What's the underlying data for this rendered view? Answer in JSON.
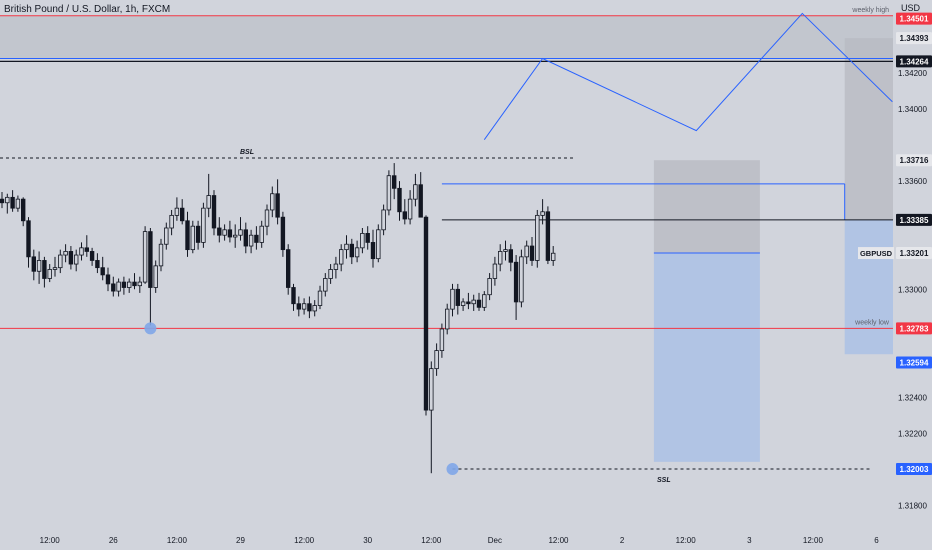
{
  "header": {
    "title": "British Pound / U.S. Dollar, 1h, FXCM",
    "currency": "USD"
  },
  "colors": {
    "background": "#d1d4dc",
    "candle": "#131722",
    "axis_text": "#131722",
    "red_line": "#f23645",
    "blue_line": "#2962ff",
    "zone_gray": "#b7bac2",
    "zone_blue": "#a9bfe6"
  },
  "chart_data": {
    "type": "candlestick",
    "symbol": "GBPUSD",
    "timeframe": "1h",
    "ylim": [
      1.317,
      1.3464
    ],
    "y_ticks": [
      1.342,
      1.34,
      1.336,
      1.33,
      1.324,
      1.322,
      1.318
    ],
    "y_tick_labels": [
      "1.34200",
      "1.34000",
      "1.33600",
      "1.33000",
      "1.32400",
      "1.32200",
      "1.31800"
    ],
    "x_ticks": [
      {
        "label": "12:00",
        "i": 9
      },
      {
        "label": "26",
        "i": 21
      },
      {
        "label": "12:00",
        "i": 33
      },
      {
        "label": "29",
        "i": 45
      },
      {
        "label": "12:00",
        "i": 57
      },
      {
        "label": "30",
        "i": 69
      },
      {
        "label": "12:00",
        "i": 81
      },
      {
        "label": "Dec",
        "i": 93
      },
      {
        "label": "12:00",
        "i": 105
      },
      {
        "label": "2",
        "i": 117
      },
      {
        "label": "12:00",
        "i": 129
      },
      {
        "label": "3",
        "i": 141
      },
      {
        "label": "12:00",
        "i": 153
      },
      {
        "label": "6",
        "i": 165
      }
    ],
    "x_axis": {
      "i0": 0,
      "px0": 2.0,
      "step": 5.3
    },
    "candles": [
      [
        1.335,
        1.3354,
        1.3345,
        1.3348
      ],
      [
        1.3348,
        1.3353,
        1.3342,
        1.3351
      ],
      [
        1.3351,
        1.3355,
        1.3343,
        1.3345
      ],
      [
        1.3345,
        1.3352,
        1.3343,
        1.335
      ],
      [
        1.335,
        1.3351,
        1.3335,
        1.3338
      ],
      [
        1.3338,
        1.334,
        1.3312,
        1.3318
      ],
      [
        1.3318,
        1.3322,
        1.3305,
        1.331
      ],
      [
        1.331,
        1.3321,
        1.3303,
        1.3316
      ],
      [
        1.3316,
        1.3318,
        1.3301,
        1.3306
      ],
      [
        1.3306,
        1.3314,
        1.3304,
        1.3311
      ],
      [
        1.3311,
        1.3318,
        1.3307,
        1.3312
      ],
      [
        1.3312,
        1.3322,
        1.3309,
        1.3319
      ],
      [
        1.3319,
        1.3325,
        1.3315,
        1.3321
      ],
      [
        1.3321,
        1.3324,
        1.3311,
        1.3314
      ],
      [
        1.3314,
        1.3322,
        1.331,
        1.3319
      ],
      [
        1.3319,
        1.3326,
        1.3316,
        1.3323
      ],
      [
        1.3323,
        1.333,
        1.3318,
        1.3321
      ],
      [
        1.3321,
        1.3323,
        1.3313,
        1.3316
      ],
      [
        1.3316,
        1.332,
        1.3309,
        1.3312
      ],
      [
        1.3312,
        1.3318,
        1.3305,
        1.3308
      ],
      [
        1.3308,
        1.3312,
        1.3299,
        1.3303
      ],
      [
        1.3303,
        1.3307,
        1.3296,
        1.3299
      ],
      [
        1.3299,
        1.3306,
        1.3296,
        1.3304
      ],
      [
        1.3304,
        1.3307,
        1.3297,
        1.3301
      ],
      [
        1.3301,
        1.3306,
        1.3298,
        1.3304
      ],
      [
        1.3304,
        1.3309,
        1.33,
        1.3302
      ],
      [
        1.3302,
        1.3307,
        1.3298,
        1.3304
      ],
      [
        1.3304,
        1.3335,
        1.3303,
        1.3332
      ],
      [
        1.3332,
        1.3334,
        1.328,
        1.3301
      ],
      [
        1.3301,
        1.3316,
        1.3298,
        1.3313
      ],
      [
        1.3313,
        1.3328,
        1.331,
        1.3325
      ],
      [
        1.3325,
        1.3337,
        1.3322,
        1.3334
      ],
      [
        1.3334,
        1.3344,
        1.333,
        1.3341
      ],
      [
        1.3341,
        1.3351,
        1.3338,
        1.3345
      ],
      [
        1.3345,
        1.335,
        1.3336,
        1.3338
      ],
      [
        1.3338,
        1.3343,
        1.3318,
        1.3322
      ],
      [
        1.3322,
        1.3338,
        1.332,
        1.3335
      ],
      [
        1.3335,
        1.3338,
        1.3322,
        1.3326
      ],
      [
        1.3326,
        1.3348,
        1.3323,
        1.3345
      ],
      [
        1.3345,
        1.3364,
        1.334,
        1.3352
      ],
      [
        1.3352,
        1.3355,
        1.333,
        1.3334
      ],
      [
        1.3334,
        1.334,
        1.3326,
        1.333
      ],
      [
        1.333,
        1.3336,
        1.3327,
        1.3333
      ],
      [
        1.3333,
        1.3338,
        1.3326,
        1.3329
      ],
      [
        1.3329,
        1.3336,
        1.3323,
        1.333
      ],
      [
        1.333,
        1.334,
        1.3327,
        1.3333
      ],
      [
        1.3333,
        1.3337,
        1.332,
        1.3324
      ],
      [
        1.3324,
        1.3333,
        1.332,
        1.333
      ],
      [
        1.333,
        1.3335,
        1.3322,
        1.3326
      ],
      [
        1.3326,
        1.3338,
        1.3323,
        1.3335
      ],
      [
        1.3335,
        1.3347,
        1.333,
        1.3344
      ],
      [
        1.3344,
        1.3357,
        1.334,
        1.3353
      ],
      [
        1.3353,
        1.3361,
        1.3336,
        1.334
      ],
      [
        1.334,
        1.3343,
        1.3318,
        1.3322
      ],
      [
        1.3322,
        1.3325,
        1.3297,
        1.3301
      ],
      [
        1.3301,
        1.3303,
        1.3288,
        1.3292
      ],
      [
        1.3292,
        1.3296,
        1.3285,
        1.3289
      ],
      [
        1.3289,
        1.3295,
        1.3286,
        1.3292
      ],
      [
        1.3292,
        1.3296,
        1.3284,
        1.3288
      ],
      [
        1.3288,
        1.3294,
        1.3285,
        1.3291
      ],
      [
        1.3291,
        1.3302,
        1.3289,
        1.3299
      ],
      [
        1.3299,
        1.3309,
        1.3296,
        1.3306
      ],
      [
        1.3306,
        1.3314,
        1.3303,
        1.3311
      ],
      [
        1.3311,
        1.3318,
        1.3306,
        1.3314
      ],
      [
        1.3314,
        1.3325,
        1.331,
        1.3322
      ],
      [
        1.3322,
        1.333,
        1.3317,
        1.3325
      ],
      [
        1.3325,
        1.3328,
        1.3314,
        1.3318
      ],
      [
        1.3318,
        1.3327,
        1.3315,
        1.3323
      ],
      [
        1.3323,
        1.3334,
        1.332,
        1.3331
      ],
      [
        1.3331,
        1.3335,
        1.3322,
        1.3326
      ],
      [
        1.3326,
        1.3333,
        1.3312,
        1.3317
      ],
      [
        1.3317,
        1.3336,
        1.3315,
        1.3333
      ],
      [
        1.3333,
        1.3347,
        1.333,
        1.3344
      ],
      [
        1.3344,
        1.3366,
        1.3341,
        1.3363
      ],
      [
        1.3363,
        1.337,
        1.335,
        1.3356
      ],
      [
        1.3356,
        1.336,
        1.3338,
        1.3343
      ],
      [
        1.3343,
        1.335,
        1.3336,
        1.3339
      ],
      [
        1.3339,
        1.3355,
        1.3336,
        1.335
      ],
      [
        1.335,
        1.3364,
        1.3346,
        1.3358
      ],
      [
        1.3358,
        1.3365,
        1.334,
        1.334
      ],
      [
        1.334,
        1.3341,
        1.323,
        1.3233
      ],
      [
        1.3233,
        1.326,
        1.3198,
        1.3256
      ],
      [
        1.3256,
        1.327,
        1.3252,
        1.3266
      ],
      [
        1.3266,
        1.3281,
        1.3262,
        1.3278
      ],
      [
        1.3278,
        1.3292,
        1.3275,
        1.3289
      ],
      [
        1.3289,
        1.3303,
        1.3285,
        1.33
      ],
      [
        1.33,
        1.3303,
        1.3286,
        1.3291
      ],
      [
        1.3291,
        1.3295,
        1.3288,
        1.3293
      ],
      [
        1.3293,
        1.3298,
        1.3289,
        1.3292
      ],
      [
        1.3292,
        1.3297,
        1.3288,
        1.3294
      ],
      [
        1.3294,
        1.3298,
        1.3288,
        1.329
      ],
      [
        1.329,
        1.3299,
        1.3288,
        1.3297
      ],
      [
        1.3297,
        1.3309,
        1.3294,
        1.3306
      ],
      [
        1.3306,
        1.3318,
        1.3302,
        1.3314
      ],
      [
        1.3314,
        1.3325,
        1.331,
        1.3321
      ],
      [
        1.3321,
        1.3327,
        1.3316,
        1.3322
      ],
      [
        1.3322,
        1.3325,
        1.331,
        1.3315
      ],
      [
        1.3315,
        1.3319,
        1.3283,
        1.3293
      ],
      [
        1.3293,
        1.3322,
        1.329,
        1.3318
      ],
      [
        1.3318,
        1.3327,
        1.3314,
        1.3324
      ],
      [
        1.3324,
        1.3329,
        1.3313,
        1.3316
      ],
      [
        1.3316,
        1.3344,
        1.3312,
        1.3341
      ],
      [
        1.3341,
        1.335,
        1.3336,
        1.3343
      ],
      [
        1.3343,
        1.3346,
        1.3314,
        1.3316
      ],
      [
        1.3316,
        1.3324,
        1.3313,
        1.332
      ]
    ],
    "annotations": {
      "labels": {
        "bsl": "BSL",
        "ssl": "SSL",
        "weekly_high": "weekly high",
        "weekly_low": "weekly low"
      },
      "bsl_level": 1.33728,
      "ssl_level": 1.32003,
      "weekly_high_level": 1.34517,
      "weekly_low_level": 1.32783,
      "fvg_upper_level": 1.33585,
      "black_line_upper": 1.34264,
      "black_line_mid": 1.33385,
      "blue_line_upper": 1.3428,
      "marker_weekly_low": {
        "i": 28,
        "y": 1.32783
      },
      "marker_ssl": {
        "i": 85,
        "y": 1.32003
      },
      "zones": {
        "gray_small": {
          "i_start": 123,
          "i_end": 143,
          "y_top": 1.33716,
          "y_bottom": 1.33201
        },
        "blue_small": {
          "i_start": 123,
          "i_end": 143,
          "y_top": 1.33201,
          "y_bottom": 1.32043
        },
        "gray_right": {
          "i_start": 159,
          "i_end": 176,
          "y_top": 1.34393,
          "y_bottom": 1.33385
        },
        "blue_right": {
          "i_start": 159,
          "i_end": 176,
          "y_top": 1.33385,
          "y_bottom": 1.3264
        }
      },
      "projection_path": [
        {
          "i": 91,
          "y": 1.3383
        },
        {
          "i": 102,
          "y": 1.3428
        },
        {
          "i": 131,
          "y": 1.3388
        },
        {
          "i": 151,
          "y": 1.3453
        },
        {
          "i": 168,
          "y": 1.3404
        }
      ]
    },
    "price_labels": [
      {
        "text": "1.34501",
        "value": 1.34501,
        "bg": "#f23645",
        "fg": "#ffffff"
      },
      {
        "text": "1.34393",
        "value": 1.34393,
        "bg": "#e6e7eb",
        "fg": "#131722"
      },
      {
        "text": "1.34264",
        "value": 1.34264,
        "bg": "#131722",
        "fg": "#ffffff"
      },
      {
        "text": "1.33716",
        "value": 1.33716,
        "bg": "#e6e7eb",
        "fg": "#131722"
      },
      {
        "text": "1.33385",
        "value": 1.33385,
        "bg": "#131722",
        "fg": "#ffffff"
      },
      {
        "text": "1.33201",
        "value": 1.33201,
        "bg": "#e6e7eb",
        "fg": "#131722"
      },
      {
        "text": "1.32783",
        "value": 1.32783,
        "bg": "#f23645",
        "fg": "#ffffff"
      },
      {
        "text": "1.32594",
        "value": 1.32594,
        "bg": "#2962ff",
        "fg": "#ffffff"
      },
      {
        "text": "1.32003",
        "value": 1.32003,
        "bg": "#2962ff",
        "fg": "#ffffff"
      }
    ],
    "symbol_label": {
      "text": "GBPUSD",
      "value": 1.33201
    }
  }
}
